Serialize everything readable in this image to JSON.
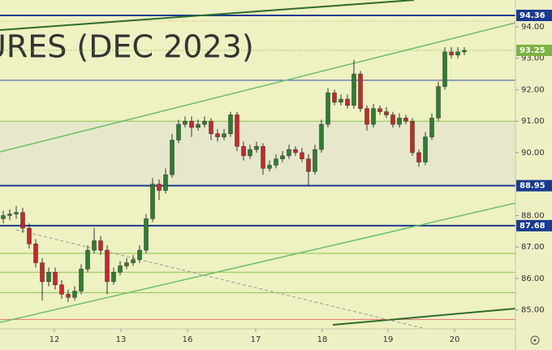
{
  "chart_data": {
    "type": "candlestick",
    "watermark": "URES (DEC 2023)",
    "up_color": "#2e7d32",
    "down_color": "#c62828",
    "open": [
      87.9,
      88.0,
      88.05,
      88.1,
      87.6,
      87.1,
      86.5,
      85.9,
      86.2,
      85.8,
      85.5,
      85.4,
      85.6,
      86.3,
      86.9,
      87.2,
      86.9,
      85.9,
      86.2,
      86.4,
      86.5,
      86.6,
      86.9,
      87.9,
      89.0,
      88.8,
      89.3,
      90.4,
      90.9,
      91.0,
      90.8,
      90.9,
      91.0,
      90.6,
      90.5,
      90.6,
      91.2,
      90.2,
      89.9,
      90.1,
      90.2,
      89.5,
      89.6,
      89.8,
      89.9,
      90.1,
      90.0,
      89.8,
      89.4,
      90.1,
      90.9,
      91.9,
      91.6,
      91.7,
      91.5,
      92.5,
      91.4,
      90.9,
      91.4,
      91.3,
      91.2,
      90.9,
      91.1,
      91.0,
      90.0,
      89.7,
      90.5,
      91.1,
      92.1,
      93.2,
      93.1,
      93.2
    ],
    "high": [
      88.15,
      88.2,
      88.3,
      88.25,
      87.75,
      87.25,
      86.65,
      86.35,
      86.35,
      85.95,
      85.65,
      85.75,
      86.45,
      87.05,
      87.6,
      87.35,
      87.05,
      86.35,
      86.55,
      86.65,
      86.75,
      87.05,
      88.05,
      89.2,
      89.15,
      89.5,
      90.6,
      91.05,
      91.15,
      91.15,
      91.05,
      91.15,
      91.1,
      90.75,
      90.75,
      91.3,
      91.3,
      90.35,
      90.25,
      90.35,
      90.3,
      89.75,
      89.95,
      90.05,
      90.25,
      90.2,
      90.15,
      89.95,
      90.25,
      91.05,
      92.05,
      92.0,
      91.85,
      91.85,
      92.95,
      92.6,
      91.5,
      91.55,
      91.5,
      91.45,
      91.3,
      91.25,
      91.2,
      91.1,
      90.1,
      90.65,
      91.25,
      92.25,
      93.35,
      93.35,
      93.35,
      93.35
    ],
    "low": [
      87.75,
      87.85,
      87.9,
      87.45,
      86.95,
      86.35,
      85.3,
      85.75,
      85.65,
      85.35,
      85.25,
      85.3,
      85.5,
      86.2,
      86.8,
      86.75,
      85.5,
      85.8,
      86.1,
      86.3,
      86.4,
      86.5,
      86.8,
      87.8,
      88.5,
      88.7,
      89.2,
      90.3,
      90.8,
      90.5,
      90.7,
      90.8,
      90.4,
      90.35,
      90.4,
      90.5,
      90.05,
      89.75,
      89.8,
      90.0,
      89.3,
      89.4,
      89.5,
      89.7,
      89.8,
      89.9,
      89.7,
      88.95,
      89.3,
      90.0,
      90.8,
      91.5,
      91.5,
      91.4,
      91.4,
      91.3,
      90.7,
      90.8,
      91.2,
      91.1,
      90.8,
      90.8,
      90.9,
      89.9,
      89.55,
      89.6,
      90.4,
      91.0,
      92.0,
      93.0,
      93.0,
      93.1
    ],
    "close": [
      88.0,
      88.05,
      88.1,
      87.6,
      87.1,
      86.5,
      85.9,
      86.2,
      85.8,
      85.5,
      85.4,
      85.6,
      86.3,
      86.9,
      87.2,
      86.9,
      85.9,
      86.2,
      86.4,
      86.5,
      86.6,
      86.9,
      87.9,
      89.0,
      88.8,
      89.3,
      90.4,
      90.9,
      91.0,
      90.8,
      90.9,
      91.0,
      90.6,
      90.5,
      90.6,
      91.2,
      90.2,
      89.9,
      90.1,
      90.2,
      89.5,
      89.6,
      89.8,
      89.9,
      90.1,
      90.0,
      89.8,
      89.4,
      90.1,
      90.9,
      91.9,
      91.6,
      91.7,
      91.5,
      92.5,
      91.4,
      90.9,
      91.4,
      91.3,
      91.2,
      90.9,
      91.1,
      91.0,
      90.0,
      89.7,
      90.5,
      91.1,
      92.1,
      93.2,
      93.1,
      93.2,
      93.25
    ],
    "xlim": [
      -0.5,
      78.875
    ],
    "xticks": [
      {
        "value": 7.875,
        "label": "12"
      },
      {
        "value": 18.125,
        "label": "13"
      },
      {
        "value": 28.375,
        "label": "16"
      },
      {
        "value": 38.875,
        "label": "17"
      },
      {
        "value": 49.125,
        "label": "18"
      },
      {
        "value": 59.25,
        "label": "19"
      },
      {
        "value": 69.5,
        "label": "20"
      }
    ],
    "ylim": [
      84.4,
      94.85
    ],
    "yticks": [
      {
        "value": 85,
        "label": "85.00"
      },
      {
        "value": 86,
        "label": "86.00"
      },
      {
        "value": 87,
        "label": "87.00"
      },
      {
        "value": 88,
        "label": "88.00"
      },
      {
        "value": 89,
        "label": "89.00"
      },
      {
        "value": 90,
        "label": "90.00"
      },
      {
        "value": 91,
        "label": "91.00"
      },
      {
        "value": 92,
        "label": "92.00"
      },
      {
        "value": 93,
        "label": "93.00"
      },
      {
        "value": 94,
        "label": "94.00"
      }
    ],
    "levels": [
      {
        "value": 94.36,
        "label": "94.36",
        "color": "#1a3a8f",
        "width": 2
      },
      {
        "value": 94.18,
        "color": "#c9b46a",
        "style": "dotted"
      },
      {
        "value": 93.25,
        "label": "93.25",
        "color": "#7cb342",
        "style": "dotted"
      },
      {
        "value": 92.3,
        "color": "#2f4fb0",
        "width": 1
      },
      {
        "value": 91.0,
        "color": "#8bc34a",
        "width": 1
      },
      {
        "value": 88.95,
        "label": "88.95",
        "color": "#1a3a8f",
        "width": 2
      },
      {
        "value": 87.68,
        "label": "87.68",
        "color": "#1a3a8f",
        "width": 2
      },
      {
        "value": 86.8,
        "color": "#8bc34a",
        "width": 1
      },
      {
        "value": 86.2,
        "color": "#8bc34a",
        "width": 1
      },
      {
        "value": 85.55,
        "color": "#8bc34a",
        "width": 1
      },
      {
        "value": 84.7,
        "color": "#e57373",
        "width": 1
      }
    ]
  }
}
